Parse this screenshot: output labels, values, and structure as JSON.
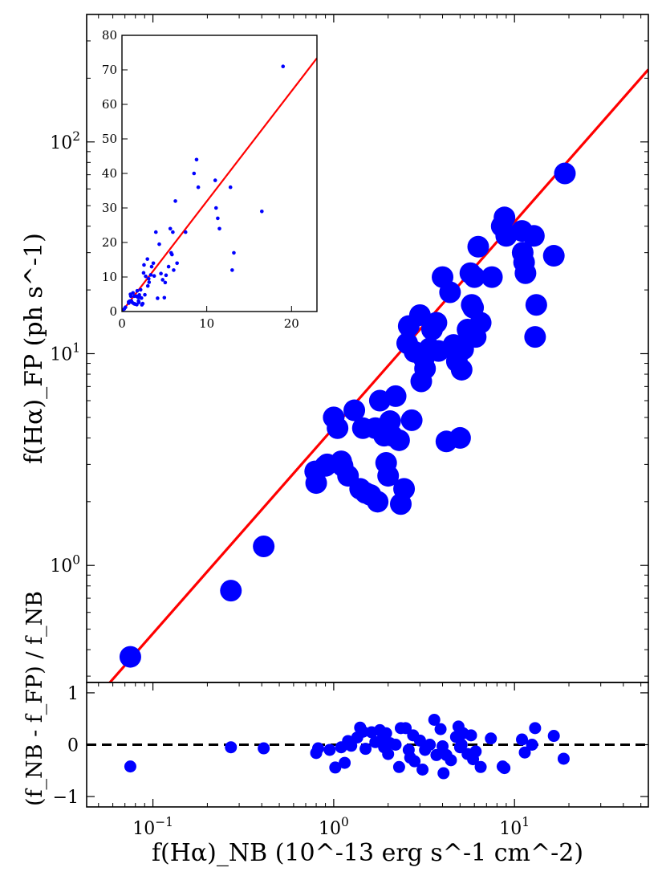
{
  "chart_data": [
    {
      "id": "main",
      "type": "scatter",
      "title": "",
      "xlabel": "",
      "ylabel": "f(Hα)_FP (ph s^-1)",
      "xscale": "log",
      "yscale": "log",
      "xlim": [
        0.043,
        55
      ],
      "ylim": [
        0.28,
        400
      ],
      "grid": false,
      "ytick_labels": [
        {
          "value": 1,
          "base": "10",
          "exp": "0"
        },
        {
          "value": 10,
          "base": "10",
          "exp": "1"
        },
        {
          "value": 100,
          "base": "10",
          "exp": "2"
        }
      ],
      "fit_line": {
        "color": "#ff0000",
        "x": [
          0.043,
          55
        ],
        "y": [
          0.21,
          219.8
        ]
      },
      "series": [
        {
          "color": "#0000ff",
          "x": [
            0.075,
            0.27,
            0.41,
            0.79,
            0.8,
            0.9,
            0.92,
            1.0,
            1.05,
            1.1,
            1.12,
            1.2,
            1.3,
            1.4,
            1.45,
            1.5,
            1.6,
            1.7,
            1.75,
            1.8,
            1.85,
            1.9,
            1.95,
            2.0,
            2.05,
            2.1,
            2.2,
            2.3,
            2.35,
            2.45,
            2.55,
            2.6,
            2.7,
            2.8,
            3.0,
            3.05,
            3.15,
            3.2,
            3.4,
            3.5,
            3.7,
            3.8,
            4.0,
            4.2,
            4.4,
            4.6,
            4.8,
            5.0,
            5.1,
            5.2,
            5.5,
            5.7,
            5.8,
            5.9,
            6.0,
            6.1,
            6.3,
            6.5,
            7.5,
            8.5,
            8.8,
            9.0,
            11.0,
            11.1,
            11.3,
            11.5,
            12.8,
            13.0,
            13.2,
            16.5,
            19.0
          ],
          "y": [
            0.37,
            0.76,
            1.23,
            2.78,
            2.45,
            2.95,
            3.0,
            5.0,
            4.45,
            3.1,
            2.95,
            2.65,
            5.4,
            2.3,
            4.45,
            2.2,
            2.15,
            4.45,
            2.0,
            6.0,
            4.4,
            4.1,
            3.05,
            2.65,
            4.8,
            4.1,
            6.3,
            3.9,
            1.95,
            2.3,
            11.2,
            13.5,
            4.85,
            10.2,
            15.2,
            7.4,
            9.5,
            8.5,
            10.6,
            13.0,
            14.0,
            10.3,
            23.0,
            3.85,
            19.5,
            11.0,
            9.2,
            4.0,
            8.4,
            10.5,
            13.0,
            24.0,
            17.0,
            16.5,
            23.0,
            12.0,
            32.0,
            14.0,
            23.0,
            40.0,
            44.0,
            36.0,
            38.0,
            30.0,
            27.0,
            24.0,
            36.0,
            12.0,
            17.0,
            29.0,
            71.0
          ]
        }
      ]
    },
    {
      "id": "residuals",
      "type": "scatter",
      "xlabel": "f(Hα)_NB (10^-13 erg s^-1 cm^-2)",
      "ylabel": "(f_NB - f_FP) / f_NB",
      "xscale": "log",
      "xlim": [
        0.043,
        55
      ],
      "ylim": [
        -1.2,
        1.2
      ],
      "grid": false,
      "xtick_labels": [
        {
          "value": 0.1,
          "base": "10",
          "exp": "−1"
        },
        {
          "value": 1,
          "base": "10",
          "exp": "0"
        },
        {
          "value": 10,
          "base": "10",
          "exp": "1"
        }
      ],
      "ytick_labels": [
        {
          "value": -1,
          "text": "−1"
        },
        {
          "value": 0,
          "text": "0"
        },
        {
          "value": 1,
          "text": "1"
        }
      ],
      "reference_line": {
        "y": 0,
        "style": "dashed",
        "color": "#000000"
      },
      "series": [
        {
          "color": "#0000ff",
          "x": [
            0.075,
            0.27,
            0.41,
            0.8,
            0.82,
            0.95,
            1.02,
            1.1,
            1.15,
            1.2,
            1.25,
            1.35,
            1.4,
            1.45,
            1.5,
            1.62,
            1.7,
            1.8,
            1.85,
            1.9,
            1.95,
            2.0,
            2.05,
            2.2,
            2.3,
            2.35,
            2.5,
            2.6,
            2.65,
            2.75,
            2.8,
            3.0,
            3.1,
            3.2,
            3.4,
            3.6,
            3.7,
            3.9,
            4.0,
            4.05,
            4.2,
            4.45,
            4.75,
            4.9,
            5.0,
            5.1,
            5.2,
            5.5,
            5.75,
            5.9,
            6.1,
            6.5,
            7.4,
            8.6,
            8.8,
            11.0,
            11.4,
            12.5,
            13.0,
            16.5,
            18.7
          ],
          "y": [
            -0.42,
            -0.05,
            -0.07,
            -0.16,
            -0.07,
            -0.1,
            -0.44,
            -0.05,
            -0.35,
            0.07,
            -0.02,
            0.14,
            0.33,
            0.25,
            -0.08,
            0.24,
            0.05,
            0.28,
            0.1,
            -0.05,
            0.22,
            -0.18,
            0.03,
            0.0,
            -0.43,
            0.32,
            0.32,
            -0.1,
            -0.25,
            0.18,
            -0.32,
            0.08,
            -0.48,
            -0.1,
            0.0,
            0.48,
            -0.2,
            0.3,
            -0.03,
            -0.55,
            -0.2,
            -0.3,
            0.15,
            0.35,
            -0.05,
            0.0,
            0.22,
            -0.18,
            0.18,
            -0.28,
            -0.13,
            -0.43,
            0.12,
            -0.42,
            -0.45,
            0.1,
            -0.15,
            0.0,
            0.32,
            0.17,
            -0.27
          ]
        }
      ]
    },
    {
      "id": "inset",
      "type": "scatter",
      "xscale": "linear",
      "yscale": "linear",
      "xlim": [
        0,
        23
      ],
      "ylim": [
        0,
        80
      ],
      "grid": false,
      "xticks": [
        "0",
        "10",
        "20"
      ],
      "yticks": [
        "0",
        "10",
        "20",
        "30",
        "40",
        "50",
        "60",
        "70",
        "80"
      ],
      "fit_line": {
        "color": "#ff0000",
        "x": [
          0,
          23
        ],
        "y": [
          0,
          73.4
        ]
      },
      "series": [
        {
          "color": "#0000ff",
          "x": [
            0.075,
            0.27,
            0.41,
            0.79,
            0.8,
            0.9,
            0.92,
            1.0,
            1.05,
            1.1,
            1.12,
            1.2,
            1.3,
            1.4,
            1.45,
            1.5,
            1.6,
            1.7,
            1.75,
            1.8,
            1.85,
            1.9,
            1.95,
            2.0,
            2.05,
            2.1,
            2.2,
            2.3,
            2.35,
            2.45,
            2.55,
            2.6,
            2.7,
            2.8,
            3.0,
            3.05,
            3.15,
            3.2,
            3.4,
            3.5,
            3.7,
            3.8,
            4.0,
            4.2,
            4.4,
            4.6,
            4.8,
            5.0,
            5.1,
            5.2,
            5.5,
            5.7,
            5.8,
            5.9,
            6.0,
            6.1,
            6.3,
            6.5,
            7.5,
            8.5,
            8.8,
            9.0,
            11.0,
            11.1,
            11.3,
            11.5,
            12.8,
            13.0,
            13.2,
            16.5,
            19.0
          ],
          "y": [
            0.37,
            0.76,
            1.23,
            2.78,
            2.45,
            2.95,
            3.0,
            5.0,
            4.45,
            3.1,
            2.95,
            2.65,
            5.4,
            2.3,
            4.45,
            2.2,
            2.15,
            4.45,
            2.0,
            6.0,
            4.4,
            4.1,
            3.05,
            2.65,
            4.8,
            4.1,
            6.3,
            3.9,
            1.95,
            2.3,
            11.2,
            13.5,
            4.85,
            10.2,
            15.2,
            7.4,
            9.5,
            8.5,
            10.6,
            13.0,
            14.0,
            10.3,
            23.0,
            3.85,
            19.5,
            11.0,
            9.2,
            4.0,
            8.4,
            10.5,
            13.0,
            24.0,
            17.0,
            16.5,
            23.0,
            12.0,
            32.0,
            14.0,
            23.0,
            40.0,
            44.0,
            36.0,
            38.0,
            30.0,
            27.0,
            24.0,
            36.0,
            12.0,
            17.0,
            29.0,
            71.0
          ]
        }
      ]
    }
  ]
}
